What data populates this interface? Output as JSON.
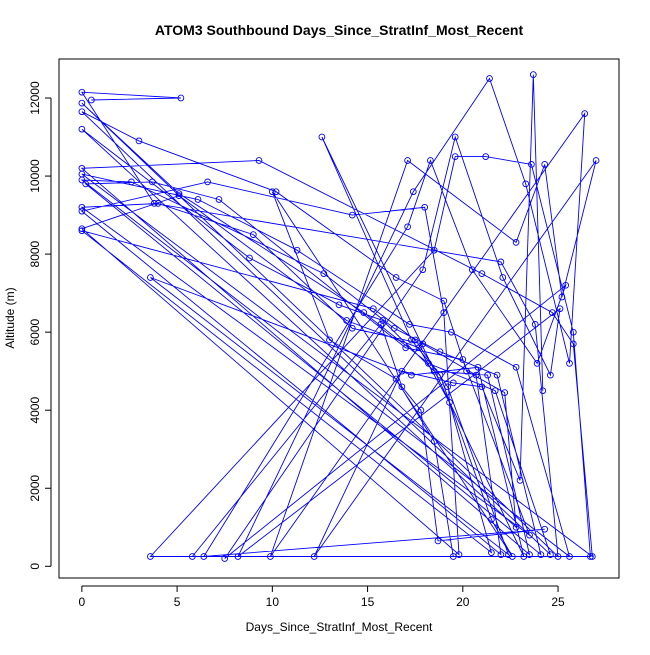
{
  "chart_data": {
    "type": "line",
    "title": "ATOM3 Southbound Days_Since_StratInf_Most_Recent",
    "xlabel": "Days_Since_StratInf_Most_Recent",
    "ylabel": "Altitude (m)",
    "xlim": [
      -1.2,
      28.2
    ],
    "ylim": [
      -300,
      13000
    ],
    "x_ticks": [
      0,
      5,
      10,
      15,
      20,
      25
    ],
    "y_ticks": [
      0,
      2000,
      4000,
      6000,
      8000,
      10000,
      12000
    ],
    "x_tick_labels": [
      "0",
      "5",
      "10",
      "15",
      "20",
      "25"
    ],
    "y_tick_labels": [
      "0",
      "2000",
      "4000",
      "6000",
      "8000",
      "10000",
      "12000"
    ],
    "series_color": "#0000ff",
    "marker": "open-circle",
    "series": [
      {
        "values": [
          [
            0.5,
            11950
          ],
          [
            5.2,
            12000
          ],
          [
            0.0,
            12150
          ],
          [
            3.8,
            9300
          ],
          [
            22.0,
            7800
          ],
          [
            23.8,
            6200
          ],
          [
            25.0,
            250
          ],
          [
            0.0,
            11870
          ],
          [
            5.1,
            9550
          ],
          [
            14.8,
            6500
          ],
          [
            18.2,
            5200
          ],
          [
            21.7,
            4500
          ],
          [
            24.6,
            300
          ],
          [
            0.0,
            11650
          ],
          [
            3.0,
            10900
          ],
          [
            10.2,
            9600
          ],
          [
            16.5,
            7400
          ],
          [
            19.0,
            6800
          ],
          [
            20.2,
            5000
          ],
          [
            22.2,
            4450
          ],
          [
            22.8,
            1000
          ],
          [
            0.0,
            11200
          ],
          [
            8.8,
            7900
          ],
          [
            13.5,
            6700
          ],
          [
            15.8,
            6300
          ],
          [
            18.5,
            5000
          ],
          [
            21.3,
            4900
          ],
          [
            23.5,
            300
          ],
          [
            0.0,
            10200
          ],
          [
            9.3,
            10400
          ],
          [
            21.0,
            7500
          ],
          [
            24.7,
            6500
          ],
          [
            25.8,
            5700
          ],
          [
            26.8,
            250
          ],
          [
            0.0,
            10050
          ],
          [
            6.1,
            9400
          ],
          [
            11.3,
            8100
          ],
          [
            17.2,
            6200
          ],
          [
            19.4,
            6000
          ],
          [
            22.8,
            5100
          ],
          [
            25.6,
            250
          ],
          [
            0.0,
            9900
          ],
          [
            2.6,
            9850
          ],
          [
            12.7,
            7500
          ],
          [
            16.4,
            6100
          ],
          [
            18.8,
            5500
          ],
          [
            21.8,
            4900
          ],
          [
            24.1,
            300
          ],
          [
            0.2,
            9800
          ],
          [
            3.7,
            9850
          ],
          [
            7.2,
            9400
          ],
          [
            17.0,
            5600
          ],
          [
            20.0,
            5300
          ],
          [
            23.5,
            800
          ],
          [
            0.0,
            9200
          ],
          [
            4.0,
            9300
          ],
          [
            9.0,
            8500
          ],
          [
            14.2,
            6100
          ],
          [
            17.9,
            5700
          ],
          [
            20.7,
            4900
          ],
          [
            22.0,
            300
          ],
          [
            0.0,
            9100
          ],
          [
            6.6,
            9850
          ],
          [
            14.2,
            9000
          ],
          [
            18.0,
            9200
          ],
          [
            19.0,
            6500
          ],
          [
            19.8,
            300
          ],
          [
            0.0,
            8650
          ],
          [
            5.1,
            9500
          ],
          [
            13.9,
            6300
          ],
          [
            17.7,
            5600
          ],
          [
            19.3,
            4200
          ],
          [
            21.5,
            350
          ],
          [
            0.0,
            8600
          ],
          [
            15.3,
            6600
          ],
          [
            17.5,
            5800
          ],
          [
            19.2,
            4600
          ],
          [
            22.4,
            300
          ],
          [
            3.6,
            7400
          ],
          [
            17.3,
            4900
          ],
          [
            20.8,
            5100
          ],
          [
            23.2,
            250
          ],
          [
            12.6,
            11000
          ],
          [
            17.3,
            5800
          ],
          [
            18.8,
            4900
          ],
          [
            21.5,
            1200
          ],
          [
            22.6,
            250
          ],
          [
            10.0,
            9600
          ],
          [
            13.0,
            5800
          ],
          [
            16.5,
            4800
          ],
          [
            18.5,
            3200
          ],
          [
            19.5,
            250
          ],
          [
            3.6,
            250
          ],
          [
            18.5,
            8100
          ],
          [
            19.6,
            10500
          ],
          [
            21.2,
            10500
          ],
          [
            23.6,
            10300
          ],
          [
            25.8,
            6000
          ],
          [
            26.7,
            250
          ],
          [
            5.8,
            250
          ],
          [
            15.7,
            6200
          ],
          [
            16.8,
            4600
          ],
          [
            17.8,
            4000
          ],
          [
            18.7,
            650
          ],
          [
            24.3,
            950
          ],
          [
            6.4,
            250
          ],
          [
            17.1,
            8700
          ],
          [
            18.3,
            10400
          ],
          [
            20.5,
            7600
          ],
          [
            23.9,
            5200
          ],
          [
            25.4,
            7200
          ],
          [
            7.5,
            200
          ],
          [
            17.9,
            7600
          ],
          [
            19.6,
            11000
          ],
          [
            22.1,
            7400
          ],
          [
            24.6,
            4900
          ],
          [
            25.1,
            6600
          ],
          [
            8.2,
            250
          ],
          [
            17.4,
            9600
          ],
          [
            21.4,
            12500
          ],
          [
            23.3,
            9800
          ],
          [
            25.6,
            5200
          ],
          [
            26.4,
            11600
          ],
          [
            9.9,
            250
          ],
          [
            17.1,
            10400
          ],
          [
            22.8,
            8300
          ],
          [
            24.3,
            10300
          ],
          [
            25.2,
            6900
          ],
          [
            27.0,
            10400
          ],
          [
            12.2,
            250
          ],
          [
            16.8,
            5000
          ],
          [
            19.5,
            4700
          ],
          [
            21.0,
            4600
          ],
          [
            23.0,
            2200
          ],
          [
            23.7,
            12600
          ],
          [
            24.2,
            4500
          ]
        ]
      }
    ]
  }
}
